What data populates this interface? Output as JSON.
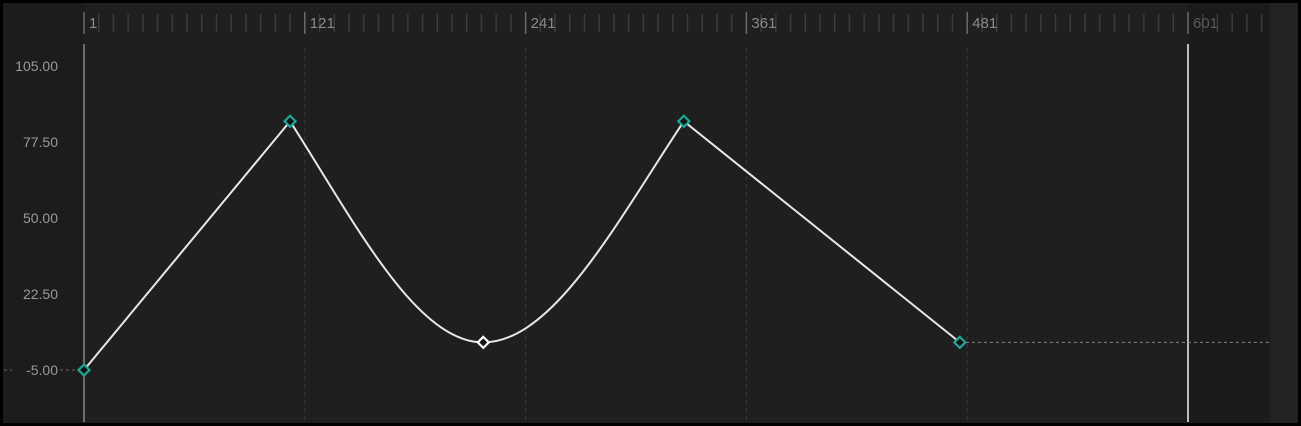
{
  "ruler": {
    "labels": [
      "1",
      "121",
      "241",
      "361",
      "481",
      "601"
    ],
    "frames": [
      1,
      121,
      241,
      361,
      481,
      601
    ],
    "minor_tick_step_frames": 8
  },
  "value_axis": {
    "labels": [
      "105.00",
      "77.50",
      "50.00",
      "22.50",
      "-5.00"
    ],
    "values": [
      105,
      77.5,
      50,
      22.5,
      -5
    ]
  },
  "playhead_frame": 601,
  "curve": {
    "keyframes": [
      {
        "frame": 1,
        "value": -5,
        "selected": false
      },
      {
        "frame": 113,
        "value": 85,
        "selected": false
      },
      {
        "frame": 218,
        "value": 5,
        "selected": true
      },
      {
        "frame": 327,
        "value": 85,
        "selected": false
      },
      {
        "frame": 477,
        "value": 5,
        "selected": false
      }
    ],
    "segment_interpolation": [
      "linear",
      "bezier",
      "bezier",
      "linear"
    ],
    "extrapolation_after": "constant"
  },
  "colors": {
    "keyframe": "#1fa89a",
    "keyframe_selected": "#ffffff",
    "curve": "#e8e8e8",
    "background": "#1f1f1f"
  }
}
